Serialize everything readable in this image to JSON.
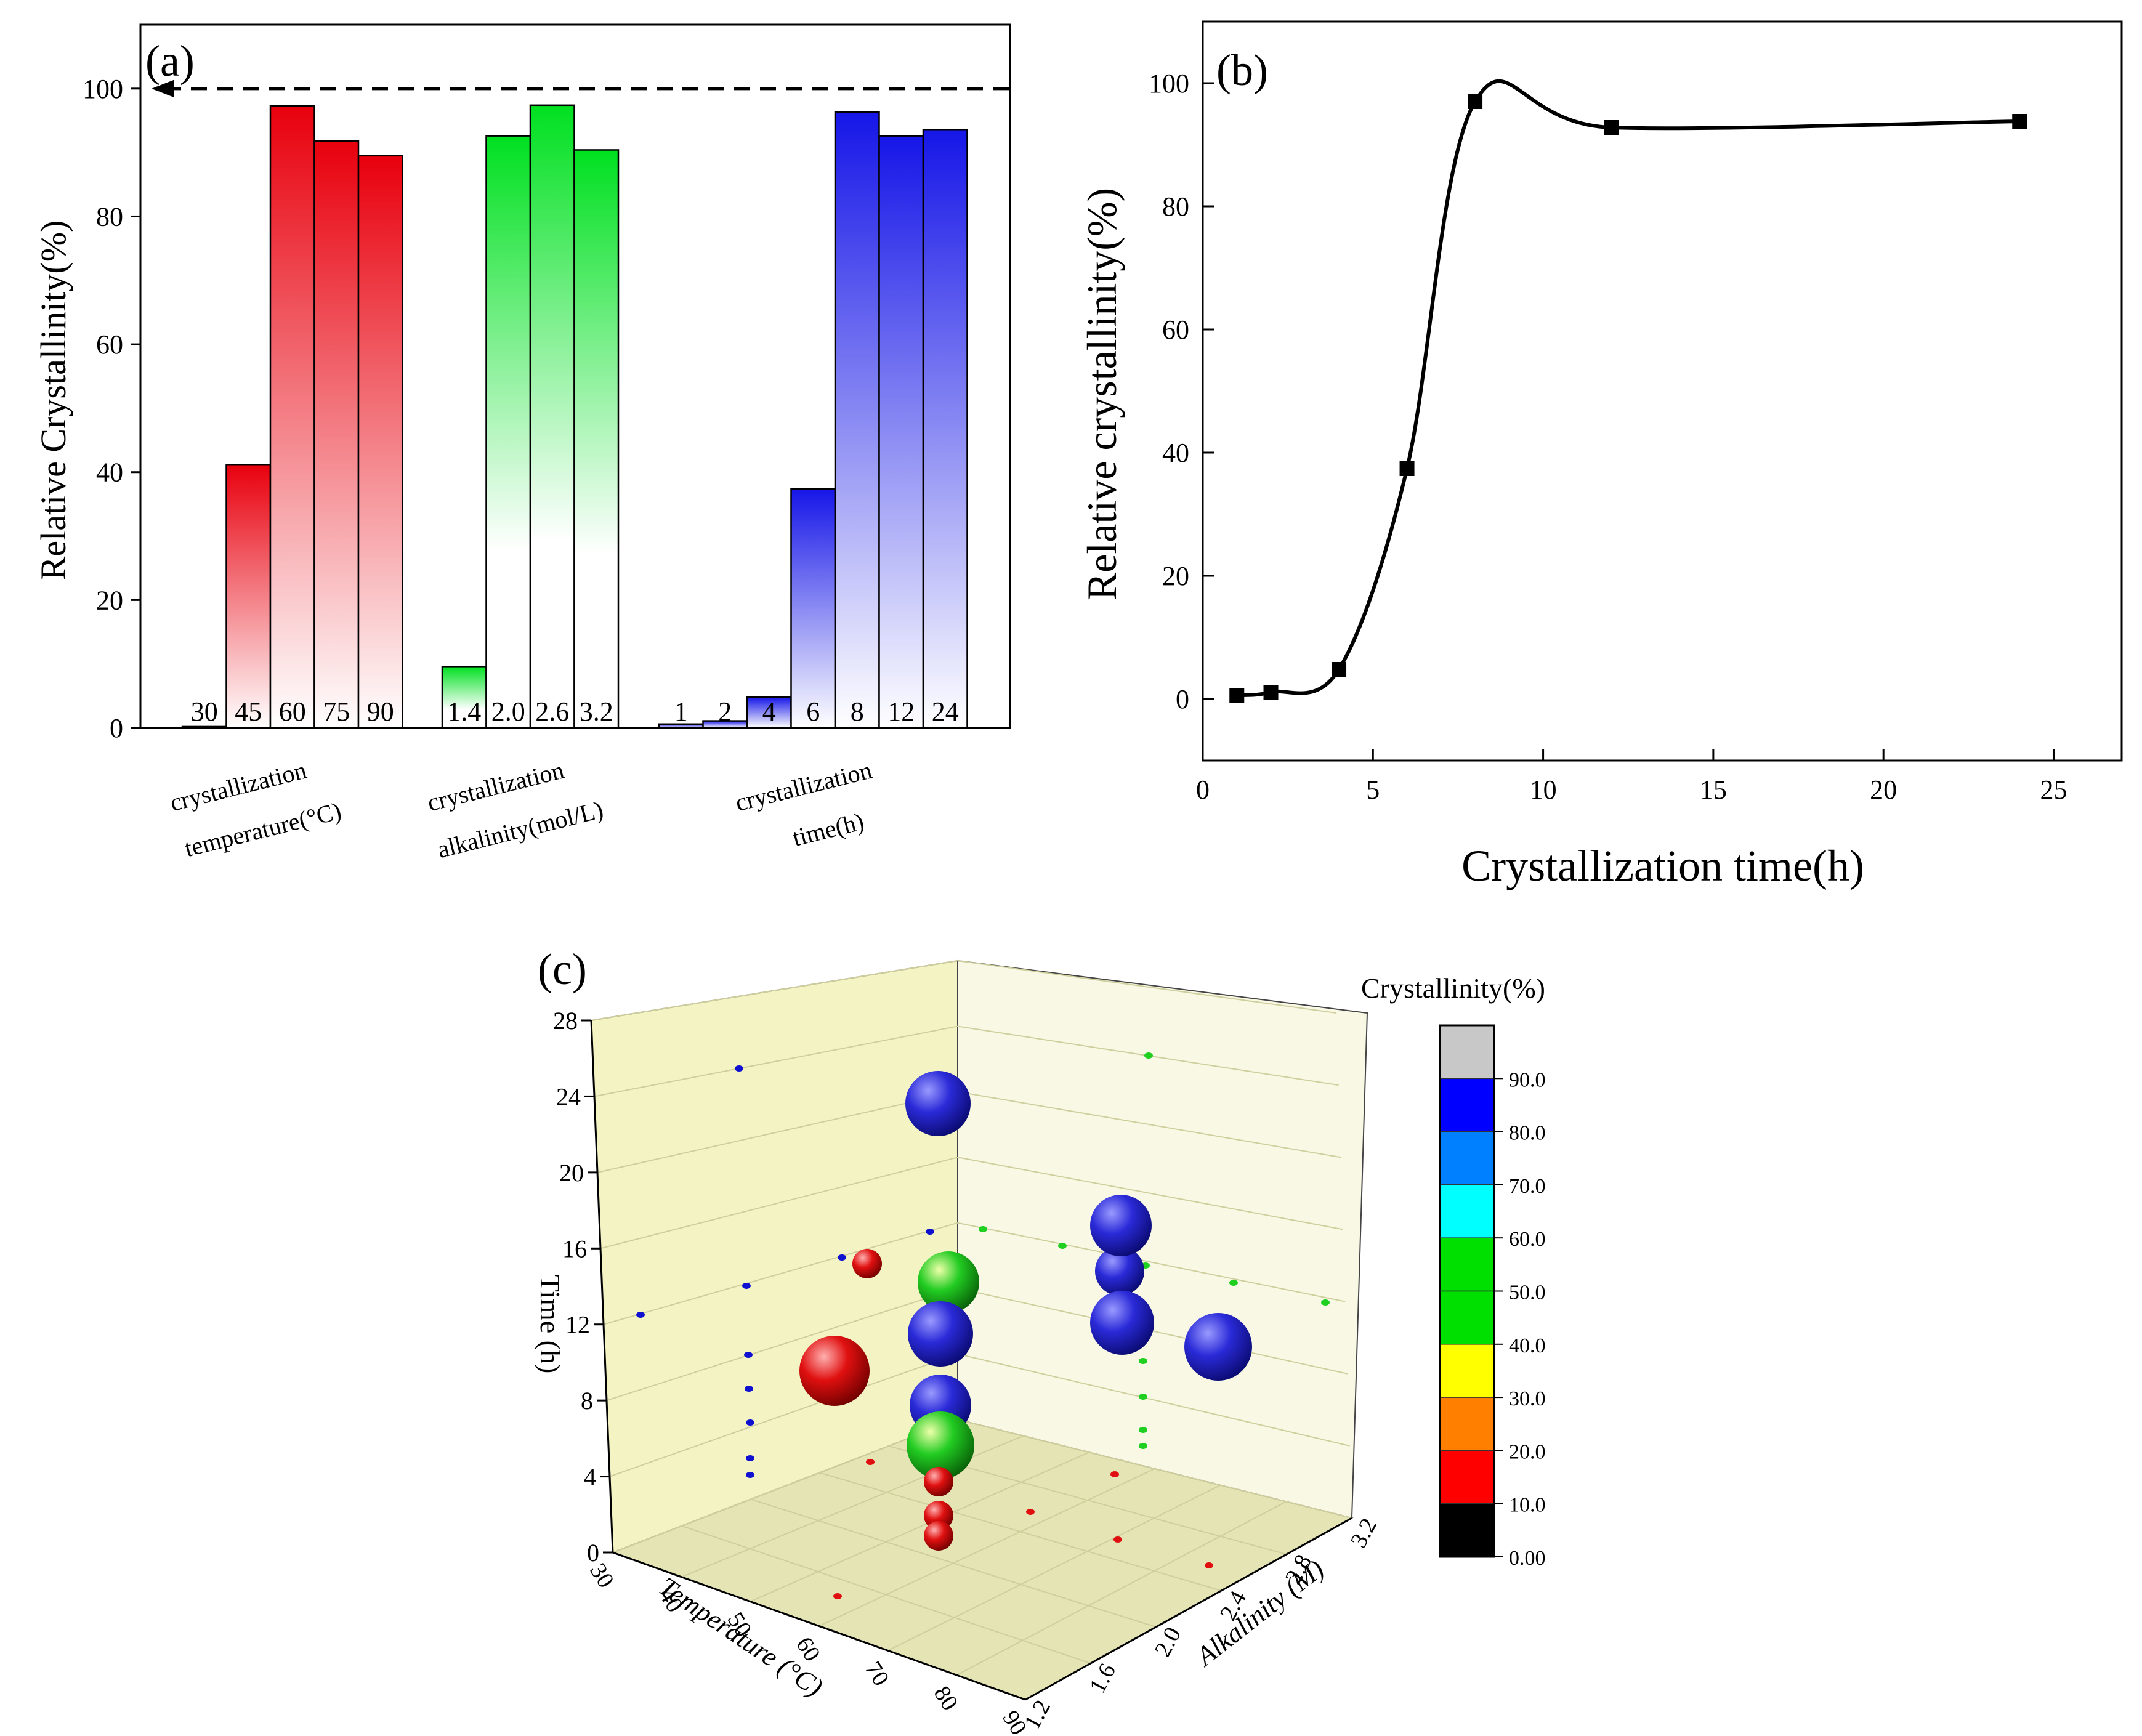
{
  "chart_data": [
    {
      "panel_label": "(a)",
      "type": "bar",
      "ylabel": "Relative Crystallinity(%)",
      "ylim": [
        0,
        110
      ],
      "yticks": [
        0,
        20,
        40,
        60,
        80,
        100
      ],
      "reference_line": 100,
      "groups": [
        {
          "label_line1": "crystallization",
          "label_line2": "temperature(°C)",
          "color": "#e8000d",
          "categories": [
            "30",
            "45",
            "60",
            "75",
            "90"
          ],
          "values": [
            0.2,
            41.2,
            97.3,
            91.8,
            89.5
          ]
        },
        {
          "label_line1": "crystallization",
          "label_line2": "alkalinity(mol/L)",
          "color": "#00e020",
          "categories": [
            "1.4",
            "2.0",
            "2.6",
            "3.2"
          ],
          "values": [
            9.6,
            92.6,
            97.4,
            90.4
          ]
        },
        {
          "label_line1": "crystallization",
          "label_line2": "time(h)",
          "color": "#1616e8",
          "categories": [
            "1",
            "2",
            "4",
            "6",
            "8",
            "12",
            "24"
          ],
          "values": [
            0.6,
            1.1,
            4.8,
            37.4,
            96.3,
            92.6,
            93.6
          ]
        }
      ]
    },
    {
      "panel_label": "(b)",
      "type": "line",
      "xlabel": "Crystallization time(h)",
      "ylabel": "Relative crystallinity(%)",
      "xlim": [
        0,
        27
      ],
      "ylim": [
        -10,
        110
      ],
      "xticks": [
        0,
        5,
        10,
        15,
        20,
        25
      ],
      "yticks": [
        0,
        20,
        40,
        60,
        80,
        100
      ],
      "x": [
        1,
        2,
        4,
        6,
        8,
        12,
        24
      ],
      "y": [
        0.6,
        1.1,
        4.8,
        37.4,
        97.0,
        92.8,
        93.8
      ]
    },
    {
      "panel_label": "(c)",
      "type": "scatter",
      "xlabel": "Temperature (°C)",
      "ylabel": "Alkalinity (M)",
      "zlabel": "Time (h)",
      "xticks": [
        "30",
        "40",
        "50",
        "60",
        "70",
        "80",
        "90"
      ],
      "yticks": [
        "1.2",
        "1.6",
        "2.0",
        "2.4",
        "2.8",
        "3.2"
      ],
      "zticks": [
        "0",
        "4",
        "8",
        "12",
        "16",
        "20",
        "24",
        "28"
      ],
      "colorbar": {
        "title": "Crystallinity(%)",
        "labels": [
          "0.00",
          "10.0",
          "20.0",
          "30.0",
          "40.0",
          "50.0",
          "60.0",
          "70.0",
          "80.0",
          "90.0"
        ],
        "colors": [
          "#000000",
          "#ff0000",
          "#ff7f00",
          "#ffff00",
          "#00e000",
          "#00e000",
          "#00ffff",
          "#0080ff",
          "#0000ff",
          "#c8c8c8"
        ]
      }
    }
  ]
}
